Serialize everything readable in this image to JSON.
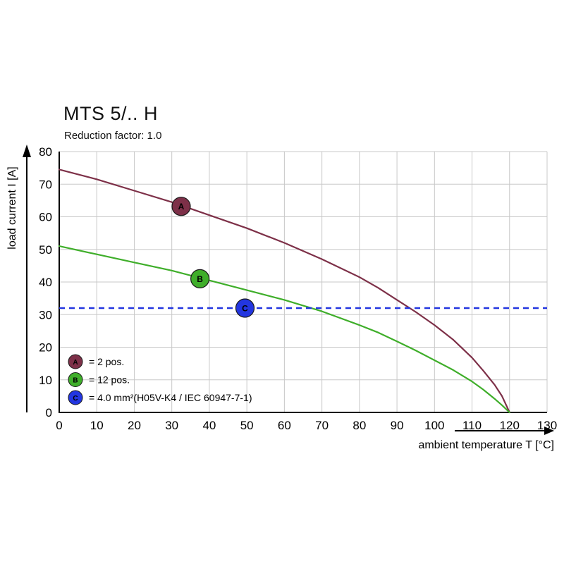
{
  "page": {
    "title": "MTS 5/.. H",
    "subtitle": "Reduction factor: 1.0"
  },
  "chart_data": {
    "type": "line",
    "title": "MTS 5/.. H",
    "subtitle": "Reduction factor: 1.0",
    "xlabel": "ambient temperature T [°C]",
    "ylabel": "load current I [A]",
    "xlim": [
      0,
      130
    ],
    "ylim": [
      0,
      80
    ],
    "xticks": [
      0,
      10,
      20,
      30,
      40,
      50,
      60,
      70,
      80,
      90,
      100,
      110,
      120,
      130
    ],
    "yticks": [
      0,
      10,
      20,
      30,
      40,
      50,
      60,
      70,
      80
    ],
    "grid": true,
    "grid_color": "#c8c8c8",
    "axis_color": "#000000",
    "legend_position": "bottom-left-inside",
    "series": [
      {
        "name": "A",
        "label": "2 pos.",
        "color": "#7d3048",
        "style": "solid",
        "points": [
          [
            0,
            74.5
          ],
          [
            10,
            71.5
          ],
          [
            20,
            68
          ],
          [
            30,
            64.5
          ],
          [
            40,
            60.5
          ],
          [
            50,
            56.5
          ],
          [
            60,
            52
          ],
          [
            70,
            47
          ],
          [
            80,
            41.5
          ],
          [
            85,
            38.2
          ],
          [
            90,
            34.5
          ],
          [
            95,
            30.8
          ],
          [
            100,
            26.8
          ],
          [
            105,
            22.3
          ],
          [
            110,
            16.8
          ],
          [
            113,
            12.8
          ],
          [
            116,
            8.5
          ],
          [
            118,
            5
          ],
          [
            120,
            0
          ]
        ],
        "marker": {
          "x": 32.5,
          "y": 63.2,
          "letter": "A"
        }
      },
      {
        "name": "B",
        "label": "12 pos.",
        "color": "#3fae2a",
        "style": "solid",
        "points": [
          [
            0,
            51
          ],
          [
            10,
            48.5
          ],
          [
            20,
            46
          ],
          [
            30,
            43.5
          ],
          [
            40,
            40.5
          ],
          [
            50,
            37.5
          ],
          [
            60,
            34.5
          ],
          [
            70,
            31
          ],
          [
            80,
            26.8
          ],
          [
            85,
            24.5
          ],
          [
            90,
            21.8
          ],
          [
            95,
            19
          ],
          [
            100,
            16
          ],
          [
            105,
            13
          ],
          [
            110,
            9.5
          ],
          [
            113,
            7
          ],
          [
            116,
            4.2
          ],
          [
            118,
            2.2
          ],
          [
            120,
            0
          ]
        ],
        "marker": {
          "x": 37.5,
          "y": 41,
          "letter": "B"
        }
      },
      {
        "name": "C",
        "label": "4.0 mm²(H05V-K4 / IEC 60947-7-1)",
        "color": "#2336e0",
        "style": "dashed",
        "y": 32,
        "marker": {
          "x": 49.5,
          "y": 32,
          "letter": "C"
        }
      }
    ],
    "legend": [
      {
        "letter": "A",
        "color": "#7d3048",
        "text": "= 2 pos."
      },
      {
        "letter": "B",
        "color": "#3fae2a",
        "text": "= 12 pos."
      },
      {
        "letter": "C",
        "color": "#2336e0",
        "text": "= 4.0 mm²(H05V-K4 / IEC 60947-7-1)"
      }
    ]
  }
}
